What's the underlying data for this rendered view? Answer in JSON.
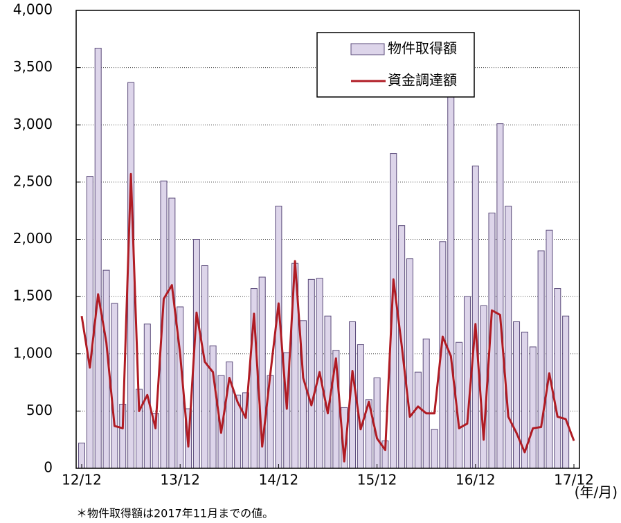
{
  "chart_data": {
    "type": "bar-line",
    "categories": [
      "12/12",
      null,
      null,
      null,
      null,
      null,
      null,
      null,
      null,
      null,
      null,
      null,
      "13/12",
      null,
      null,
      null,
      null,
      null,
      null,
      null,
      null,
      null,
      null,
      null,
      "14/12",
      null,
      null,
      null,
      null,
      null,
      null,
      null,
      null,
      null,
      null,
      null,
      "15/12",
      null,
      null,
      null,
      null,
      null,
      null,
      null,
      null,
      null,
      null,
      null,
      "16/12",
      null,
      null,
      null,
      null,
      null,
      null,
      null,
      null,
      null,
      null,
      null,
      "17/12"
    ],
    "series": [
      {
        "name": "物件取得額",
        "type": "bar",
        "color": "#ddd5ea",
        "values": [
          220,
          2550,
          3670,
          1730,
          1440,
          560,
          3370,
          690,
          1260,
          480,
          2510,
          2360,
          1410,
          520,
          2000,
          1770,
          1070,
          810,
          930,
          640,
          660,
          1570,
          1670,
          810,
          2290,
          1010,
          1790,
          1290,
          1650,
          1660,
          1330,
          1030,
          530,
          1280,
          1080,
          600,
          790,
          240,
          2750,
          2120,
          1830,
          840,
          1130,
          340,
          1980,
          3400,
          1100,
          1500,
          2640,
          1420,
          2230,
          3010,
          2290,
          1280,
          1190,
          1060,
          1900,
          2080,
          1570,
          1330,
          null
        ]
      },
      {
        "name": "資金調達額",
        "type": "line",
        "color": "#b01c24",
        "values": [
          1330,
          880,
          1520,
          1100,
          370,
          350,
          2570,
          500,
          640,
          350,
          1480,
          1600,
          1000,
          190,
          1360,
          930,
          840,
          310,
          790,
          580,
          440,
          1350,
          190,
          830,
          1440,
          520,
          1810,
          790,
          550,
          840,
          480,
          960,
          60,
          850,
          340,
          580,
          260,
          160,
          1650,
          1080,
          450,
          540,
          480,
          480,
          1150,
          980,
          350,
          390,
          1260,
          250,
          1380,
          1340,
          450,
          310,
          140,
          350,
          360,
          830,
          450,
          430,
          240
        ]
      }
    ],
    "ylim": [
      0,
      4000
    ],
    "yticks": [
      0,
      500,
      {
        "value": 1000,
        "label": "1,000"
      },
      {
        "value": 1500,
        "label": "1,500"
      },
      {
        "value": 2000,
        "label": "2,000"
      },
      {
        "value": 2500,
        "label": "2,500"
      },
      {
        "value": 3000,
        "label": "3,000"
      },
      {
        "value": 3500,
        "label": "3,500"
      },
      {
        "value": 4000,
        "label": "4,000"
      }
    ],
    "grid": true,
    "legend": "upper right",
    "x_unit": "(年/月)",
    "note": "＊物件取得額は2017年11月までの値。"
  }
}
